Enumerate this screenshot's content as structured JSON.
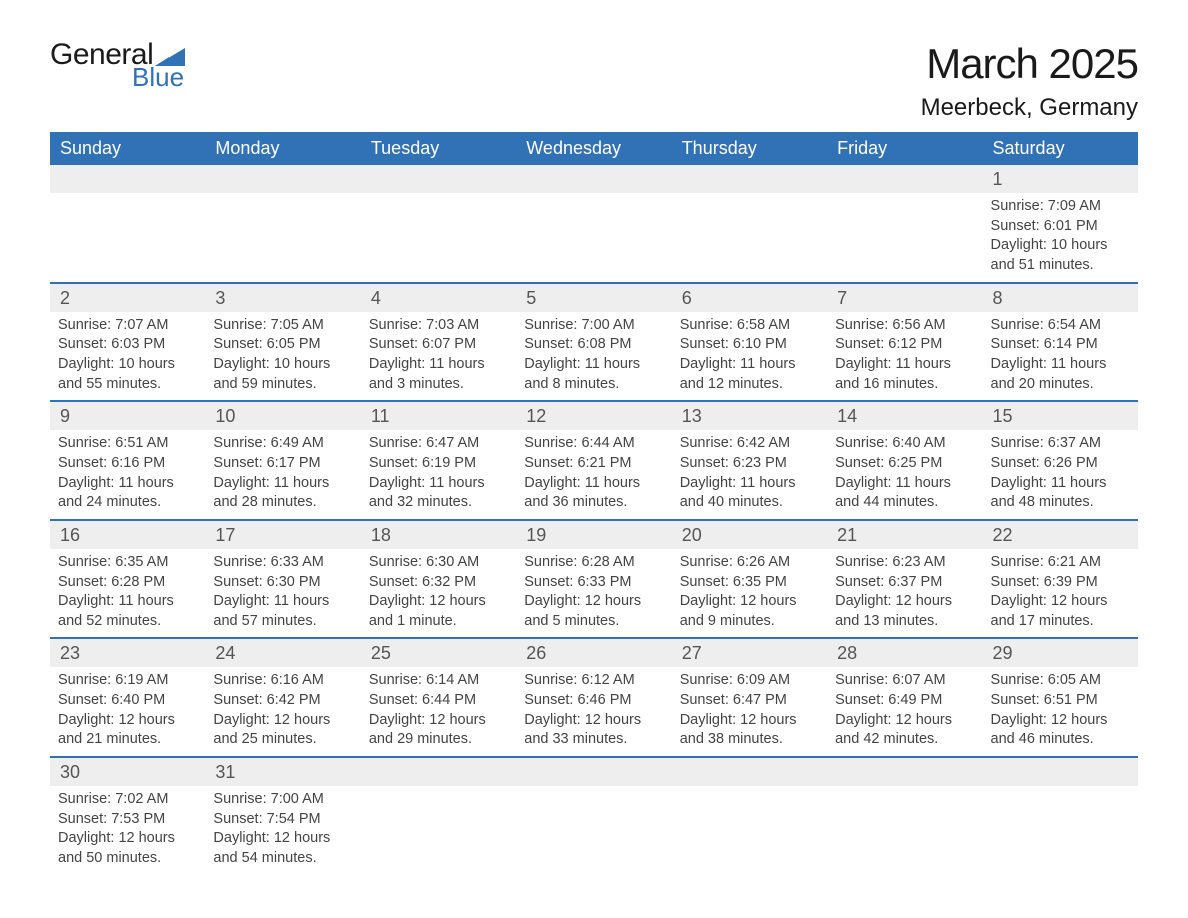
{
  "brand": {
    "word1": "General",
    "word2": "Blue",
    "accent_color": "#3172b6",
    "text_color": "#1a1a1a"
  },
  "title": "March 2025",
  "subtitle": "Meerbeck, Germany",
  "colors": {
    "header_bg": "#3172b6",
    "header_text": "#ffffff",
    "daynum_bg": "#eeeeee",
    "divider": "#3172b6",
    "body_text": "#444444",
    "background": "#ffffff"
  },
  "day_headers": [
    "Sunday",
    "Monday",
    "Tuesday",
    "Wednesday",
    "Thursday",
    "Friday",
    "Saturday"
  ],
  "weeks": [
    {
      "nums": [
        "",
        "",
        "",
        "",
        "",
        "",
        "1"
      ],
      "details": [
        "",
        "",
        "",
        "",
        "",
        "",
        "Sunrise: 7:09 AM\nSunset: 6:01 PM\nDaylight: 10 hours and 51 minutes."
      ]
    },
    {
      "nums": [
        "2",
        "3",
        "4",
        "5",
        "6",
        "7",
        "8"
      ],
      "details": [
        "Sunrise: 7:07 AM\nSunset: 6:03 PM\nDaylight: 10 hours and 55 minutes.",
        "Sunrise: 7:05 AM\nSunset: 6:05 PM\nDaylight: 10 hours and 59 minutes.",
        "Sunrise: 7:03 AM\nSunset: 6:07 PM\nDaylight: 11 hours and 3 minutes.",
        "Sunrise: 7:00 AM\nSunset: 6:08 PM\nDaylight: 11 hours and 8 minutes.",
        "Sunrise: 6:58 AM\nSunset: 6:10 PM\nDaylight: 11 hours and 12 minutes.",
        "Sunrise: 6:56 AM\nSunset: 6:12 PM\nDaylight: 11 hours and 16 minutes.",
        "Sunrise: 6:54 AM\nSunset: 6:14 PM\nDaylight: 11 hours and 20 minutes."
      ]
    },
    {
      "nums": [
        "9",
        "10",
        "11",
        "12",
        "13",
        "14",
        "15"
      ],
      "details": [
        "Sunrise: 6:51 AM\nSunset: 6:16 PM\nDaylight: 11 hours and 24 minutes.",
        "Sunrise: 6:49 AM\nSunset: 6:17 PM\nDaylight: 11 hours and 28 minutes.",
        "Sunrise: 6:47 AM\nSunset: 6:19 PM\nDaylight: 11 hours and 32 minutes.",
        "Sunrise: 6:44 AM\nSunset: 6:21 PM\nDaylight: 11 hours and 36 minutes.",
        "Sunrise: 6:42 AM\nSunset: 6:23 PM\nDaylight: 11 hours and 40 minutes.",
        "Sunrise: 6:40 AM\nSunset: 6:25 PM\nDaylight: 11 hours and 44 minutes.",
        "Sunrise: 6:37 AM\nSunset: 6:26 PM\nDaylight: 11 hours and 48 minutes."
      ]
    },
    {
      "nums": [
        "16",
        "17",
        "18",
        "19",
        "20",
        "21",
        "22"
      ],
      "details": [
        "Sunrise: 6:35 AM\nSunset: 6:28 PM\nDaylight: 11 hours and 52 minutes.",
        "Sunrise: 6:33 AM\nSunset: 6:30 PM\nDaylight: 11 hours and 57 minutes.",
        "Sunrise: 6:30 AM\nSunset: 6:32 PM\nDaylight: 12 hours and 1 minute.",
        "Sunrise: 6:28 AM\nSunset: 6:33 PM\nDaylight: 12 hours and 5 minutes.",
        "Sunrise: 6:26 AM\nSunset: 6:35 PM\nDaylight: 12 hours and 9 minutes.",
        "Sunrise: 6:23 AM\nSunset: 6:37 PM\nDaylight: 12 hours and 13 minutes.",
        "Sunrise: 6:21 AM\nSunset: 6:39 PM\nDaylight: 12 hours and 17 minutes."
      ]
    },
    {
      "nums": [
        "23",
        "24",
        "25",
        "26",
        "27",
        "28",
        "29"
      ],
      "details": [
        "Sunrise: 6:19 AM\nSunset: 6:40 PM\nDaylight: 12 hours and 21 minutes.",
        "Sunrise: 6:16 AM\nSunset: 6:42 PM\nDaylight: 12 hours and 25 minutes.",
        "Sunrise: 6:14 AM\nSunset: 6:44 PM\nDaylight: 12 hours and 29 minutes.",
        "Sunrise: 6:12 AM\nSunset: 6:46 PM\nDaylight: 12 hours and 33 minutes.",
        "Sunrise: 6:09 AM\nSunset: 6:47 PM\nDaylight: 12 hours and 38 minutes.",
        "Sunrise: 6:07 AM\nSunset: 6:49 PM\nDaylight: 12 hours and 42 minutes.",
        "Sunrise: 6:05 AM\nSunset: 6:51 PM\nDaylight: 12 hours and 46 minutes."
      ]
    },
    {
      "nums": [
        "30",
        "31",
        "",
        "",
        "",
        "",
        ""
      ],
      "details": [
        "Sunrise: 7:02 AM\nSunset: 7:53 PM\nDaylight: 12 hours and 50 minutes.",
        "Sunrise: 7:00 AM\nSunset: 7:54 PM\nDaylight: 12 hours and 54 minutes.",
        "",
        "",
        "",
        "",
        ""
      ]
    }
  ]
}
